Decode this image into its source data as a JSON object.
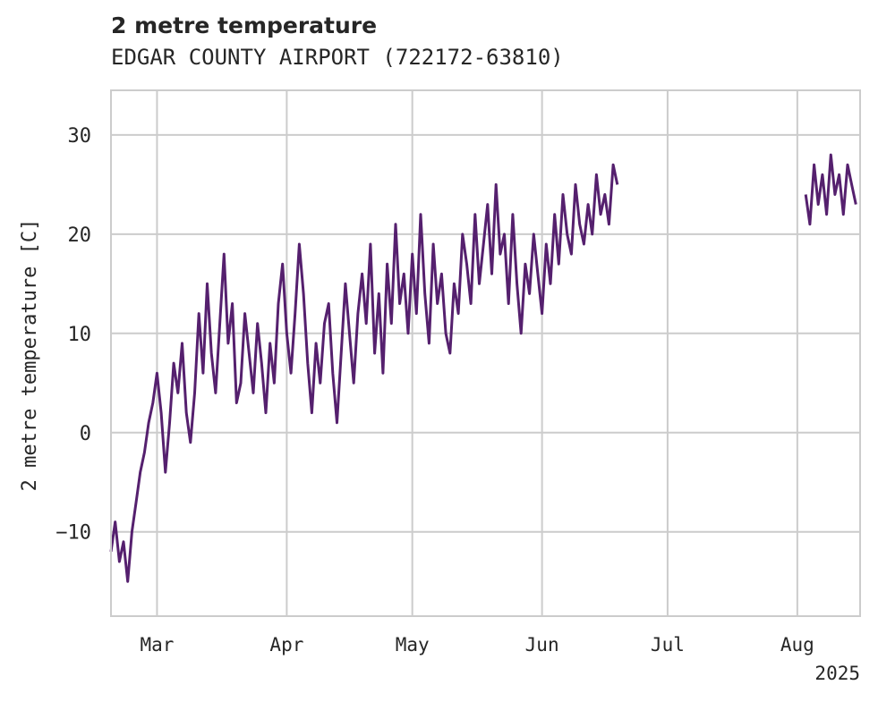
{
  "chart_data": {
    "type": "line",
    "title": "2 metre temperature",
    "subtitle": "EDGAR COUNTY AIRPORT (722172-63810)",
    "ylabel": "2 metre temperature [C]",
    "xlabel": "",
    "year_label": "2025",
    "x_tick_labels": [
      "Mar",
      "Apr",
      "May",
      "Jun",
      "Jul",
      "Aug"
    ],
    "x_tick_dates": [
      "2025-03-01",
      "2025-04-01",
      "2025-05-01",
      "2025-06-01",
      "2025-07-01",
      "2025-08-01"
    ],
    "y_ticks": [
      -10,
      0,
      10,
      20,
      30
    ],
    "xlim": [
      "2025-02-18",
      "2025-08-16"
    ],
    "ylim": [
      -18.5,
      34.5
    ],
    "grid": true,
    "line_color": "#55206e",
    "series": [
      {
        "points": [
          [
            "2025-02-18",
            -12
          ],
          [
            "2025-02-19",
            -9
          ],
          [
            "2025-02-20",
            -13
          ],
          [
            "2025-02-21",
            -11
          ],
          [
            "2025-02-22",
            -15
          ],
          [
            "2025-02-23",
            -10
          ],
          [
            "2025-02-24",
            -7
          ],
          [
            "2025-02-25",
            -4
          ],
          [
            "2025-02-26",
            -2
          ],
          [
            "2025-02-27",
            1
          ],
          [
            "2025-02-28",
            3
          ],
          [
            "2025-03-01",
            6
          ],
          [
            "2025-03-02",
            2
          ],
          [
            "2025-03-03",
            -4
          ],
          [
            "2025-03-04",
            1
          ],
          [
            "2025-03-05",
            7
          ],
          [
            "2025-03-06",
            4
          ],
          [
            "2025-03-07",
            9
          ],
          [
            "2025-03-08",
            2
          ],
          [
            "2025-03-09",
            -1
          ],
          [
            "2025-03-10",
            4
          ],
          [
            "2025-03-11",
            12
          ],
          [
            "2025-03-12",
            6
          ],
          [
            "2025-03-13",
            15
          ],
          [
            "2025-03-14",
            8
          ],
          [
            "2025-03-15",
            4
          ],
          [
            "2025-03-16",
            11
          ],
          [
            "2025-03-17",
            18
          ],
          [
            "2025-03-18",
            9
          ],
          [
            "2025-03-19",
            13
          ],
          [
            "2025-03-20",
            3
          ],
          [
            "2025-03-21",
            5
          ],
          [
            "2025-03-22",
            12
          ],
          [
            "2025-03-23",
            8
          ],
          [
            "2025-03-24",
            4
          ],
          [
            "2025-03-25",
            11
          ],
          [
            "2025-03-26",
            7
          ],
          [
            "2025-03-27",
            2
          ],
          [
            "2025-03-28",
            9
          ],
          [
            "2025-03-29",
            5
          ],
          [
            "2025-03-30",
            13
          ],
          [
            "2025-03-31",
            17
          ],
          [
            "2025-04-01",
            10
          ],
          [
            "2025-04-02",
            6
          ],
          [
            "2025-04-03",
            12
          ],
          [
            "2025-04-04",
            19
          ],
          [
            "2025-04-05",
            14
          ],
          [
            "2025-04-06",
            7
          ],
          [
            "2025-04-07",
            2
          ],
          [
            "2025-04-08",
            9
          ],
          [
            "2025-04-09",
            5
          ],
          [
            "2025-04-10",
            11
          ],
          [
            "2025-04-11",
            13
          ],
          [
            "2025-04-12",
            6
          ],
          [
            "2025-04-13",
            1
          ],
          [
            "2025-04-14",
            8
          ],
          [
            "2025-04-15",
            15
          ],
          [
            "2025-04-16",
            10
          ],
          [
            "2025-04-17",
            5
          ],
          [
            "2025-04-18",
            12
          ],
          [
            "2025-04-19",
            16
          ],
          [
            "2025-04-20",
            11
          ],
          [
            "2025-04-21",
            19
          ],
          [
            "2025-04-22",
            8
          ],
          [
            "2025-04-23",
            14
          ],
          [
            "2025-04-24",
            6
          ],
          [
            "2025-04-25",
            17
          ],
          [
            "2025-04-26",
            11
          ],
          [
            "2025-04-27",
            21
          ],
          [
            "2025-04-28",
            13
          ],
          [
            "2025-04-29",
            16
          ],
          [
            "2025-04-30",
            10
          ],
          [
            "2025-05-01",
            18
          ],
          [
            "2025-05-02",
            12
          ],
          [
            "2025-05-03",
            22
          ],
          [
            "2025-05-04",
            14
          ],
          [
            "2025-05-05",
            9
          ],
          [
            "2025-05-06",
            19
          ],
          [
            "2025-05-07",
            13
          ],
          [
            "2025-05-08",
            16
          ],
          [
            "2025-05-09",
            10
          ],
          [
            "2025-05-10",
            8
          ],
          [
            "2025-05-11",
            15
          ],
          [
            "2025-05-12",
            12
          ],
          [
            "2025-05-13",
            20
          ],
          [
            "2025-05-14",
            17
          ],
          [
            "2025-05-15",
            13
          ],
          [
            "2025-05-16",
            22
          ],
          [
            "2025-05-17",
            15
          ],
          [
            "2025-05-18",
            19
          ],
          [
            "2025-05-19",
            23
          ],
          [
            "2025-05-20",
            16
          ],
          [
            "2025-05-21",
            25
          ],
          [
            "2025-05-22",
            18
          ],
          [
            "2025-05-23",
            20
          ],
          [
            "2025-05-24",
            13
          ],
          [
            "2025-05-25",
            22
          ],
          [
            "2025-05-26",
            15
          ],
          [
            "2025-05-27",
            10
          ],
          [
            "2025-05-28",
            17
          ],
          [
            "2025-05-29",
            14
          ],
          [
            "2025-05-30",
            20
          ],
          [
            "2025-05-31",
            16
          ],
          [
            "2025-06-01",
            12
          ],
          [
            "2025-06-02",
            19
          ],
          [
            "2025-06-03",
            15
          ],
          [
            "2025-06-04",
            22
          ],
          [
            "2025-06-05",
            17
          ],
          [
            "2025-06-06",
            24
          ],
          [
            "2025-06-07",
            20
          ],
          [
            "2025-06-08",
            18
          ],
          [
            "2025-06-09",
            25
          ],
          [
            "2025-06-10",
            21
          ],
          [
            "2025-06-11",
            19
          ],
          [
            "2025-06-12",
            23
          ],
          [
            "2025-06-13",
            20
          ],
          [
            "2025-06-14",
            26
          ],
          [
            "2025-06-15",
            22
          ],
          [
            "2025-06-16",
            24
          ],
          [
            "2025-06-17",
            21
          ],
          [
            "2025-06-18",
            27
          ],
          [
            "2025-06-19",
            25
          ]
        ]
      },
      {
        "points": [
          [
            "2025-08-03",
            24
          ],
          [
            "2025-08-04",
            21
          ],
          [
            "2025-08-05",
            27
          ],
          [
            "2025-08-06",
            23
          ],
          [
            "2025-08-07",
            26
          ],
          [
            "2025-08-08",
            22
          ],
          [
            "2025-08-09",
            28
          ],
          [
            "2025-08-10",
            24
          ],
          [
            "2025-08-11",
            26
          ],
          [
            "2025-08-12",
            22
          ],
          [
            "2025-08-13",
            27
          ],
          [
            "2025-08-14",
            25
          ],
          [
            "2025-08-15",
            23
          ]
        ]
      }
    ]
  }
}
